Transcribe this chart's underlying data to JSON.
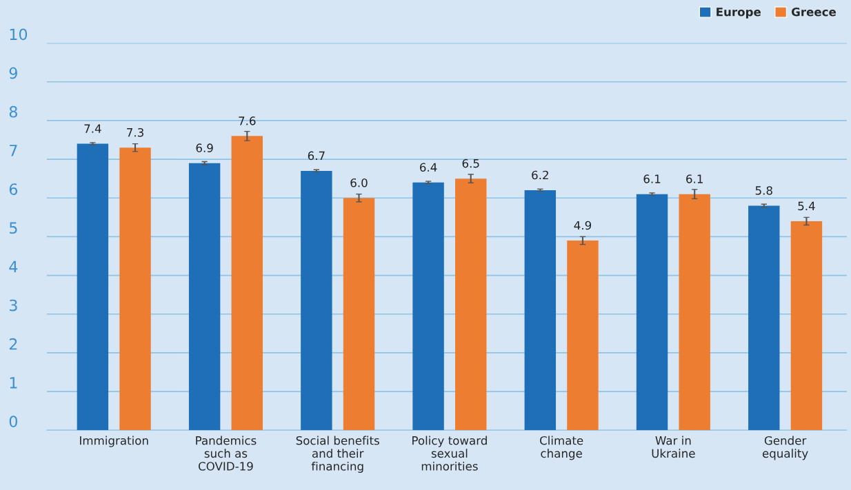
{
  "chart_data": {
    "type": "bar",
    "categories": [
      "Immigration",
      "Pandemics\nsuch as\nCOVID-19",
      "Social benefits\nand their\nfinancing",
      "Policy toward\nsexual\nminorities",
      "Climate\nchange",
      "War in\nUkraine",
      "Gender\nequality"
    ],
    "series": [
      {
        "name": "Europe",
        "color": "#1f6fb8",
        "values": [
          7.4,
          6.9,
          6.7,
          6.4,
          6.2,
          6.1,
          5.8
        ],
        "errors": [
          0.03,
          0.04,
          0.03,
          0.03,
          0.03,
          0.03,
          0.04
        ],
        "value_labels": [
          "7.4",
          "6.9",
          "6.7",
          "6.4",
          "6.2",
          "6.1",
          "5.8"
        ]
      },
      {
        "name": "Greece",
        "color": "#ed7d31",
        "values": [
          7.3,
          7.6,
          6.0,
          6.5,
          4.9,
          6.1,
          5.4
        ],
        "errors": [
          0.1,
          0.12,
          0.1,
          0.11,
          0.1,
          0.12,
          0.1
        ],
        "value_labels": [
          "7.3",
          "7.6",
          "6.0",
          "6.5",
          "4.9",
          "6.1",
          "5.4"
        ]
      }
    ],
    "ylim": [
      0,
      10
    ],
    "yticks": [
      0,
      1,
      2,
      3,
      4,
      5,
      6,
      7,
      8,
      9,
      10
    ],
    "grid": "y",
    "legend": "top right"
  }
}
